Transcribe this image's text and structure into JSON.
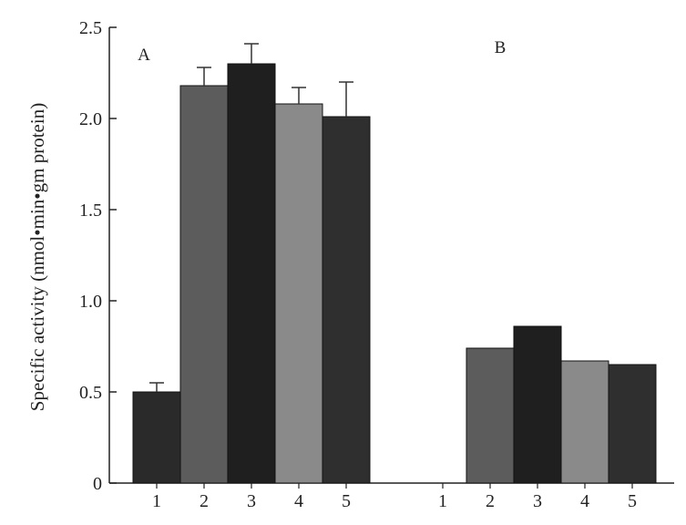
{
  "chart_data": {
    "type": "bar",
    "ylabel": "Specific activity (nmol•min•gm protein)",
    "ylim": [
      0,
      2.5
    ],
    "yticks": [
      0,
      0.5,
      1.0,
      1.5,
      2.0,
      2.5
    ],
    "ytick_labels": [
      "0",
      "0.5",
      "1.0",
      "1.5",
      "2.0",
      "2.5"
    ],
    "categories": [
      "1",
      "2",
      "3",
      "4",
      "5"
    ],
    "bar_colors": [
      "#2a2a2a",
      "#5c5c5c",
      "#1f1f1f",
      "#8a8a8a",
      "#2f2f2f"
    ],
    "groups": [
      {
        "label": "A",
        "values": [
          0.5,
          2.18,
          2.3,
          2.08,
          2.01
        ],
        "errors": [
          0.05,
          0.1,
          0.11,
          0.09,
          0.19
        ]
      },
      {
        "label": "B",
        "values": [
          0,
          0.74,
          0.86,
          0.67,
          0.65
        ],
        "errors": [
          0,
          0,
          0,
          0,
          0
        ]
      }
    ],
    "grid": false
  }
}
